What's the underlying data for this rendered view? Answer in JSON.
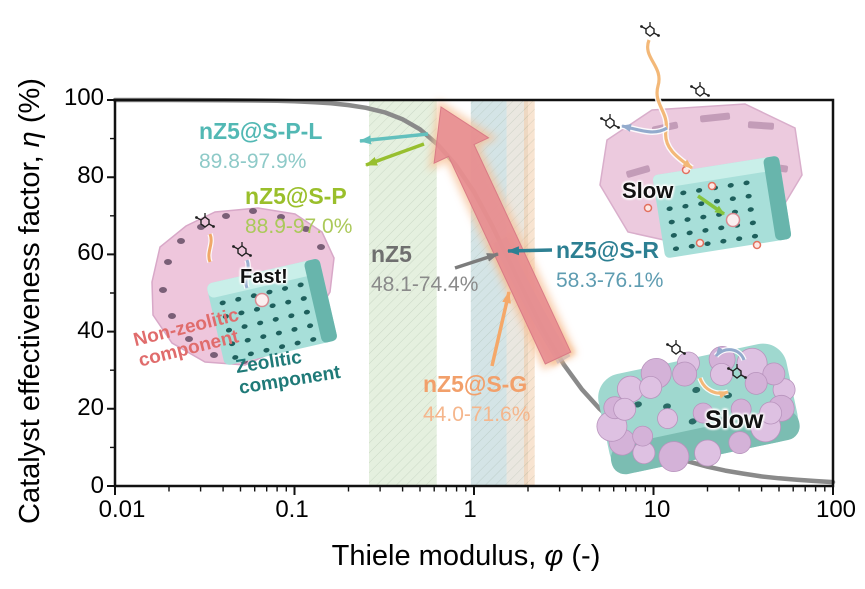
{
  "palette": {
    "curve_gray": "#8a8a8a",
    "frame_black": "#111111",
    "big_arrow_pink": "#e5868f",
    "big_arrow_glow": "#f7c196",
    "highlight_blue": "#96a5d5",
    "highlight_glow": "#f5ae6f",
    "illus_pink": "#eccade",
    "illus_teal": "#a8dfd9"
  },
  "chart_data": {
    "type": "line",
    "x_scale": "log",
    "xlim": [
      0.01,
      100
    ],
    "ylim": [
      0,
      100
    ],
    "grid": false,
    "xlabel": {
      "pre": "Thiele modulus, ",
      "symbol": "φ",
      "post": " (-)"
    },
    "ylabel": {
      "pre": "Catalyst effectiveness factor, ",
      "symbol": "η",
      "post": " (%)"
    },
    "x_ticks": [
      "0.01",
      "0.1",
      "1",
      "10",
      "100"
    ],
    "y_ticks": [
      "100",
      "80",
      "60",
      "40",
      "20",
      "0"
    ],
    "series": [
      {
        "name": "effectiveness factor curve η = tanh(φ)/φ",
        "color": "#8a8a8a",
        "points": [
          [
            0.01,
            100
          ],
          [
            0.02,
            99.99
          ],
          [
            0.04,
            99.95
          ],
          [
            0.06,
            99.88
          ],
          [
            0.08,
            99.79
          ],
          [
            0.1,
            99.67
          ],
          [
            0.13,
            99.44
          ],
          [
            0.16,
            99.15
          ],
          [
            0.2,
            98.69
          ],
          [
            0.25,
            97.97
          ],
          [
            0.32,
            96.75
          ],
          [
            0.4,
            95.0
          ],
          [
            0.5,
            92.4
          ],
          [
            0.63,
            88.4
          ],
          [
            0.79,
            83.2
          ],
          [
            1.0,
            76.2
          ],
          [
            1.26,
            67.5
          ],
          [
            1.58,
            58.0
          ],
          [
            2.0,
            48.2
          ],
          [
            2.51,
            39.3
          ],
          [
            3.16,
            31.5
          ],
          [
            3.98,
            25.1
          ],
          [
            5.01,
            20.0
          ],
          [
            6.31,
            15.8
          ],
          [
            7.94,
            12.6
          ],
          [
            10,
            10.0
          ],
          [
            12.6,
            7.9
          ],
          [
            15.8,
            6.3
          ],
          [
            20,
            5.0
          ],
          [
            25.1,
            4.0
          ],
          [
            31.6,
            3.2
          ],
          [
            39.8,
            2.5
          ],
          [
            50.1,
            2.0
          ],
          [
            63.1,
            1.6
          ],
          [
            79.4,
            1.3
          ],
          [
            100,
            1.0
          ]
        ]
      }
    ],
    "bands": [
      {
        "id": "green",
        "label": "nZ5@S-P and nZ5@S-P-L operating range",
        "phi_range": [
          0.26,
          0.62
        ],
        "color": "#cfe3c5",
        "opacity": 0.55
      },
      {
        "id": "teal",
        "label": "nZ5@S-R operating range",
        "phi_range": [
          0.96,
          1.52
        ],
        "color": "#b8d2d6",
        "opacity": 0.6
      },
      {
        "id": "gray",
        "label": "nZ5 operating range",
        "phi_range": [
          1.52,
          2.0
        ],
        "color": "#dcd7cb",
        "opacity": 0.6
      },
      {
        "id": "orange",
        "label": "nZ5@S-G operating range",
        "phi_range": [
          1.9,
          2.18
        ],
        "color": "#f2c9a4",
        "opacity": 0.5
      }
    ],
    "annotations": [
      {
        "id": "nz5-s-p-l",
        "label": "nZ5@S-P-L",
        "range": "89.8-97.9%",
        "label_color": "#52b8b4",
        "value_color": "#8ecac8"
      },
      {
        "id": "nz5-s-p",
        "label": "nZ5@S-P",
        "range": "88.9-97.0%",
        "label_color": "#9abf2b",
        "value_color": "#abc95a"
      },
      {
        "id": "nz5",
        "label": "nZ5",
        "range": "48.1-74.4%",
        "label_color": "#6f6f6f",
        "value_color": "#8a8a8a"
      },
      {
        "id": "nz5-s-r",
        "label": "nZ5@S-R",
        "range": "58.3-76.1%",
        "label_color": "#2c7f92",
        "value_color": "#5e9cb1"
      },
      {
        "id": "nz5-s-g",
        "label": "nZ5@S-G",
        "range": "44.0-71.6%",
        "label_color": "#f2a06b",
        "value_color": "#f5b68c"
      }
    ]
  },
  "illustrations": {
    "core_shell": {
      "fast_label": "Fast!",
      "nonzeolitic": {
        "line1": "Non-zeolitic",
        "line2": "component",
        "color": "#e06c6c"
      },
      "zeolitic": {
        "line1": "Zeolitic",
        "line2": "component",
        "color": "#1f7a78"
      }
    },
    "routed_shell": {
      "slow_label": "Slow"
    },
    "bead_shell": {
      "slow_label": "Slow"
    }
  }
}
